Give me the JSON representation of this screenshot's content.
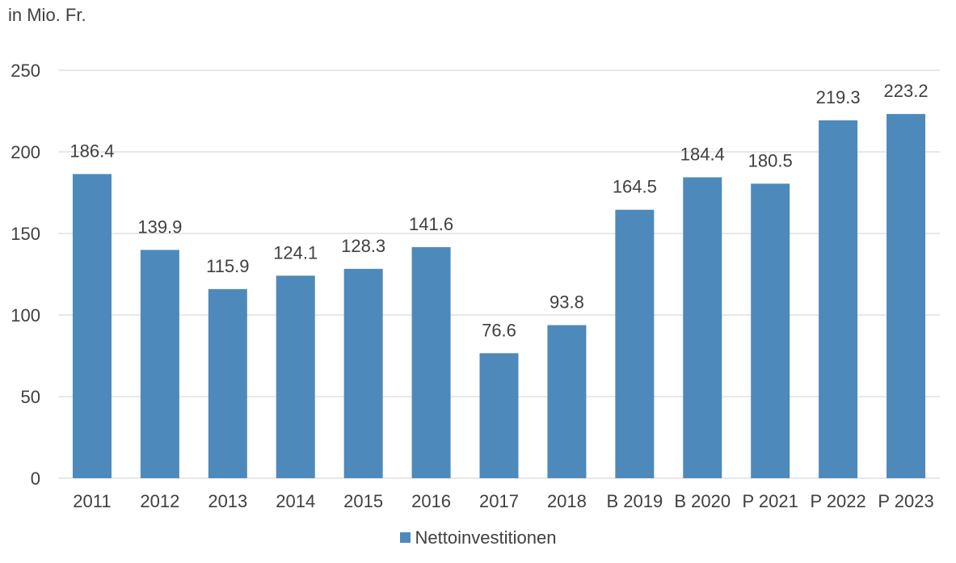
{
  "chart_data": {
    "type": "bar",
    "title": "",
    "unit_label": "in Mio. Fr.",
    "xlabel": "",
    "ylabel": "",
    "categories": [
      "2011",
      "2012",
      "2013",
      "2014",
      "2015",
      "2016",
      "2017",
      "2018",
      "B 2019",
      "B 2020",
      "P 2021",
      "P 2022",
      "P 2023"
    ],
    "series": [
      {
        "name": "Nettoinvestitionen",
        "color": "#4e89bb",
        "values": [
          186.4,
          139.9,
          115.9,
          124.1,
          128.3,
          141.6,
          76.6,
          93.8,
          164.5,
          184.4,
          180.5,
          219.3,
          223.2
        ],
        "labels": [
          "186.4",
          "139.9",
          "115.9",
          "124.1",
          "128.3",
          "141.6",
          "76.6",
          "93.8",
          "164.5",
          "184.4",
          "180.5",
          "219.3",
          "223.2"
        ]
      }
    ],
    "ylim": [
      0,
      250
    ],
    "yticks": [
      0,
      50,
      100,
      150,
      200,
      250
    ],
    "grid": true,
    "gridline_color": "#d9d9d9",
    "legend_position": "bottom"
  }
}
